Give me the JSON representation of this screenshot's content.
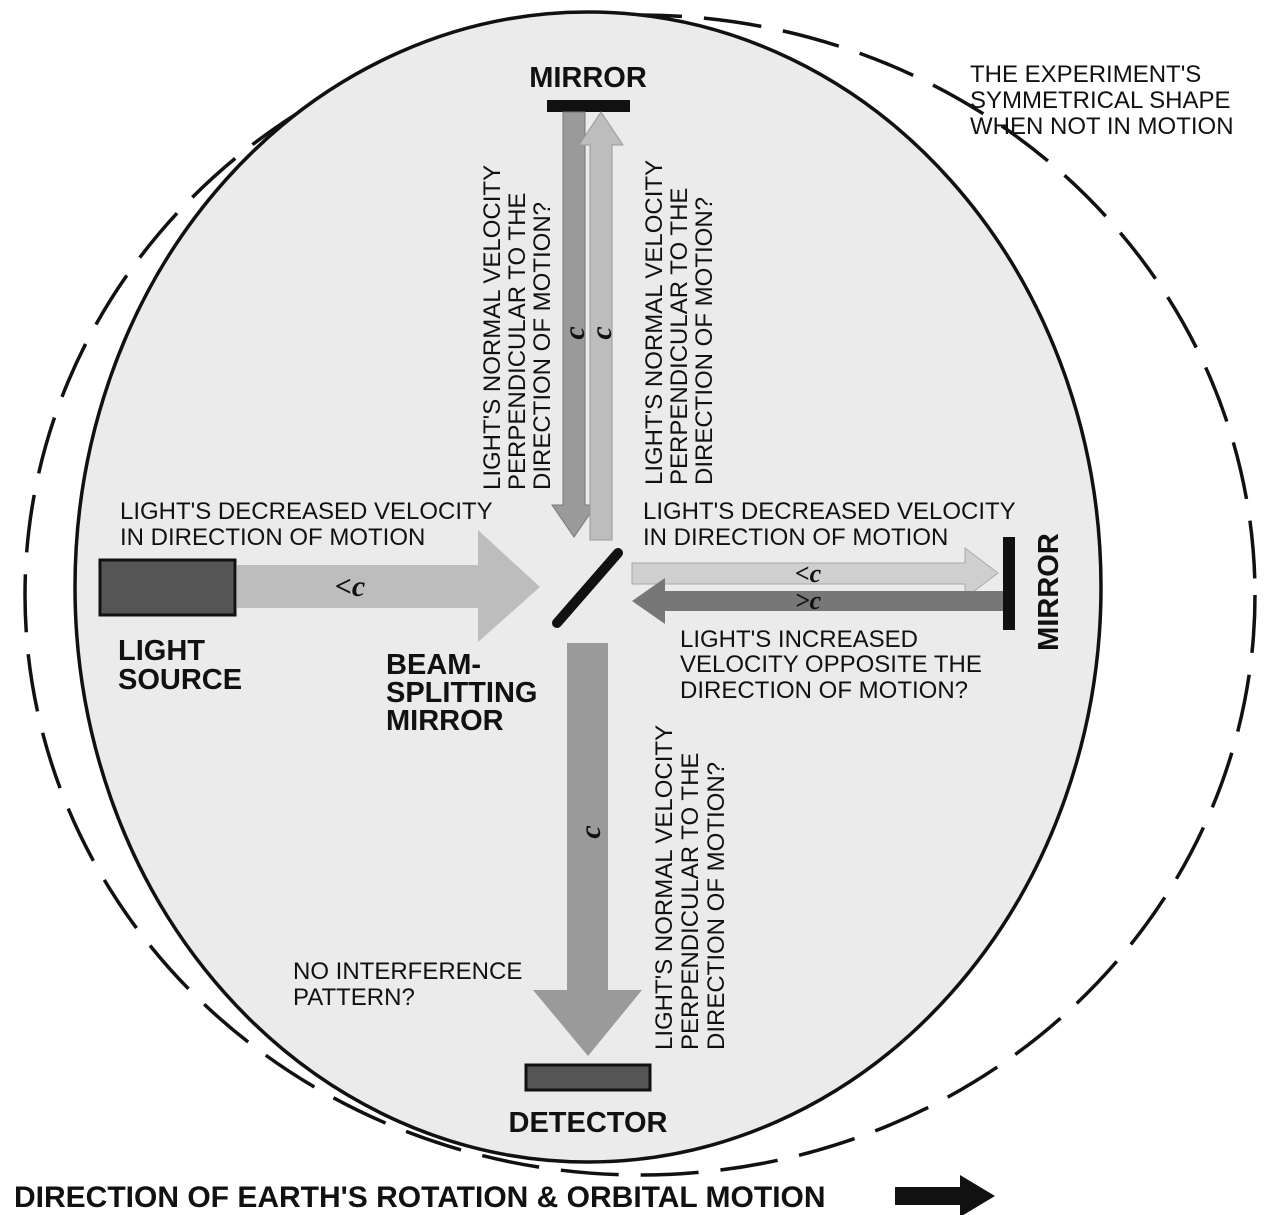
{
  "shape_note": [
    "THE EXPERIMENT'S",
    "SYMMETRICAL SHAPE",
    "WHEN NOT IN MOTION"
  ],
  "top_mirror": "MIRROR",
  "right_mirror": "MIRROR",
  "light_source": [
    "LIGHT",
    "SOURCE"
  ],
  "beam_splitter": [
    "BEAM-",
    "SPLITTING",
    "MIRROR"
  ],
  "detector": "DETECTOR",
  "source_beam": {
    "label": "<c",
    "note": [
      "LIGHT'S DECREASED VELOCITY",
      "IN DIRECTION OF MOTION"
    ]
  },
  "vertical_arm": {
    "down_label": "c",
    "up_label": "c",
    "left_note": [
      "LIGHT'S NORMAL VELOCITY",
      "PERPENDICULAR TO THE",
      "DIRECTION OF MOTION?"
    ],
    "right_note": [
      "LIGHT'S NORMAL VELOCITY",
      "PERPENDICULAR TO THE",
      "DIRECTION OF MOTION?"
    ]
  },
  "horizontal_arm": {
    "out_label": "<c",
    "back_label": ">c",
    "out_note": [
      "LIGHT'S DECREASED VELOCITY",
      "IN DIRECTION OF MOTION"
    ],
    "back_note": [
      "LIGHT'S INCREASED",
      "VELOCITY OPPOSITE THE",
      "DIRECTION OF MOTION?"
    ]
  },
  "detector_beam": {
    "label": "c",
    "note": [
      "LIGHT'S NORMAL VELOCITY",
      "PERPENDICULAR TO THE",
      "DIRECTION OF MOTION?"
    ]
  },
  "interference_note": [
    "NO INTERFERENCE",
    "PATTERN?"
  ],
  "motion_caption": "DIRECTION OF EARTH'S ROTATION & ORBITAL MOTION"
}
